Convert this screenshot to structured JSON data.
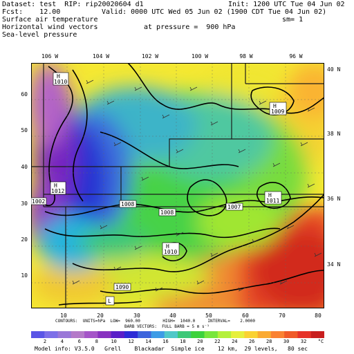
{
  "header": {
    "line1_left": "Dataset: test  RIP: rip20020604 d1",
    "line1_right": "Init: 1200 UTC Tue 04 Jun 02",
    "line2_left": "Fcst:    12.00",
    "line2_right": "Valid: 0000 UTC Wed 05 Jun 02 (1900 CDT Tue 04 Jun 02)",
    "line3_left": "Surface air temperature",
    "line3_right": "sm= 1",
    "line4_left": "Horizontal wind vectors",
    "line4_mid": "at pressure =  900 hPa",
    "line5_left": "Sea-level pressure"
  },
  "map": {
    "lon_labels": [
      "106 W",
      "104 W",
      "102 W",
      "100 W",
      "98 W",
      "96 W"
    ],
    "lat_labels": [
      "40 N",
      "38 N",
      "36 N",
      "34 N"
    ],
    "y_ticks": [
      "60",
      "50",
      "40",
      "30",
      "20",
      "10"
    ],
    "x_ticks": [
      "10",
      "20",
      "30",
      "40",
      "50",
      "60",
      "70",
      "80"
    ],
    "pressure_labels": [
      {
        "text": "1010",
        "kind": "H"
      },
      {
        "text": "1009",
        "kind": "H"
      },
      {
        "text": "1012",
        "kind": "H"
      },
      {
        "text": "1008",
        "kind": ""
      },
      {
        "text": "1008",
        "kind": ""
      },
      {
        "text": "1007",
        "kind": ""
      },
      {
        "text": "1011",
        "kind": "H"
      },
      {
        "text": "1010",
        "kind": "H"
      },
      {
        "text": "1090",
        "kind": ""
      },
      {
        "text": "1002",
        "kind": ""
      }
    ],
    "marker_letters": [
      "H",
      "H",
      "H",
      "H",
      "H",
      "L"
    ]
  },
  "info": {
    "contours": "CONTOURS:  UNITS=hPa  LOW=  960.00         HIGH=  1040.0     INTERVAL=    2.0000",
    "barbs": "BARB VECTORS:  FULL BARB = 5 m s⁻¹"
  },
  "colorbar": {
    "labels": [
      "2",
      "4",
      "6",
      "8",
      "10",
      "12",
      "14",
      "16",
      "18",
      "20",
      "22",
      "24",
      "26",
      "28",
      "30",
      "32",
      "°C"
    ],
    "colors": [
      "#5a55e6",
      "#7d6fe8",
      "#9a78d8",
      "#b47ac8",
      "#a555c8",
      "#8832c0",
      "#5a1ec8",
      "#2b2bd6",
      "#3c64dc",
      "#3c9be6",
      "#50c8c8",
      "#3cc878",
      "#3cd23c",
      "#78e63c",
      "#b4f03c",
      "#e6f03c",
      "#fad232",
      "#faaa32",
      "#fa8232",
      "#f05a28",
      "#e63228",
      "#c81e1e"
    ]
  },
  "footer": "Model info: V3.5.0   Grell    Blackadar  Simple ice    12 km,  29 levels,   80 sec"
}
